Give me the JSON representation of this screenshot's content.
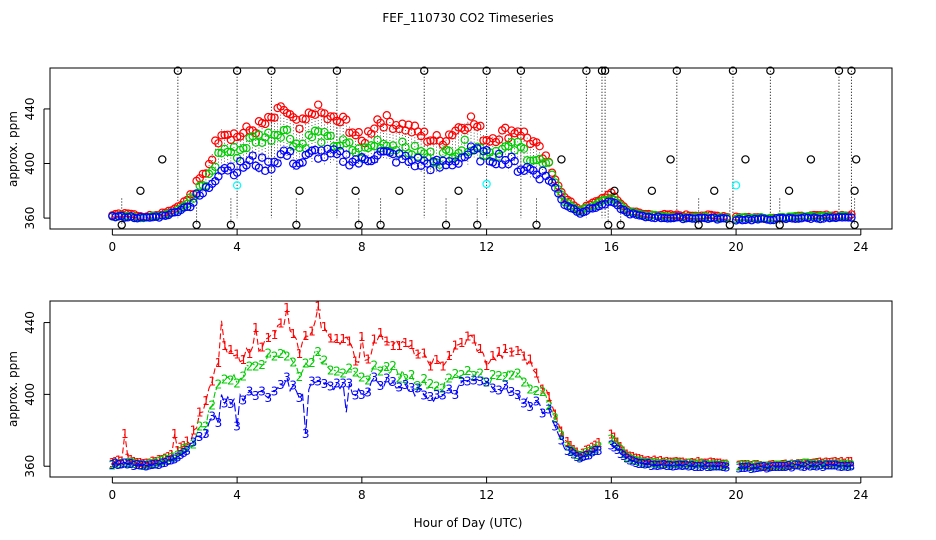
{
  "title": "FEF_110730  CO2 Timeseries",
  "xlabel_bottom": "Hour of Day (UTC)",
  "colors": {
    "series_1": "#ff0000",
    "series_2": "#00cc00",
    "series_3": "#0000ff",
    "outlier": "#000000",
    "alt": "#00ffff",
    "axis": "#000000"
  },
  "chart_data": [
    {
      "type": "scatter",
      "panel": "top",
      "ylabel": "approx. ppm",
      "xlim": [
        -2,
        25
      ],
      "ylim": [
        352,
        470
      ],
      "xticks": [
        0,
        4,
        8,
        12,
        16,
        20,
        24
      ],
      "yticks": [
        360,
        400,
        440
      ],
      "anchors": {
        "hours": [
          0,
          0.5,
          1,
          1.5,
          2,
          2.5,
          3,
          3.5,
          4,
          4.5,
          5,
          5.5,
          6,
          6.5,
          7,
          7.5,
          8,
          8.5,
          9,
          9.5,
          10,
          10.5,
          11,
          11.5,
          12,
          12.5,
          13,
          13.5,
          14,
          14.5,
          15,
          15.5,
          16,
          16.5,
          17,
          18,
          19,
          20,
          21,
          22,
          23,
          23.8
        ],
        "series_1": [
          362,
          364,
          361,
          363,
          367,
          375,
          395,
          425,
          420,
          425,
          430,
          440,
          425,
          440,
          432,
          430,
          415,
          432,
          430,
          426,
          420,
          416,
          425,
          432,
          418,
          422,
          425,
          415,
          398,
          375,
          366,
          372,
          378,
          366,
          363,
          362,
          362,
          361,
          360,
          361,
          362,
          362
        ],
        "series_2": [
          361,
          362,
          360,
          362,
          365,
          372,
          385,
          410,
          408,
          418,
          420,
          425,
          412,
          422,
          416,
          413,
          407,
          416,
          413,
          410,
          406,
          404,
          410,
          414,
          408,
          410,
          412,
          404,
          396,
          372,
          365,
          370,
          375,
          365,
          362,
          361,
          361,
          360,
          360,
          361,
          361,
          361
        ],
        "series_3": [
          361,
          361,
          360,
          361,
          364,
          370,
          380,
          398,
          396,
          402,
          398,
          408,
          400,
          408,
          406,
          404,
          401,
          408,
          405,
          402,
          400,
          398,
          402,
          408,
          405,
          404,
          398,
          395,
          390,
          370,
          364,
          368,
          372,
          364,
          361,
          360,
          360,
          359,
          359,
          360,
          360,
          360
        ]
      },
      "outliers_high": [
        2.1,
        4.0,
        5.1,
        7.2,
        10.0,
        12.0,
        13.1,
        15.2,
        15.7,
        15.8,
        18.1,
        19.9,
        21.1,
        23.3,
        23.7
      ],
      "outliers_low": [
        0.3,
        2.7,
        3.8,
        5.9,
        7.9,
        8.6,
        10.7,
        11.7,
        13.6,
        15.9,
        16.3,
        18.8,
        19.8,
        21.4,
        23.8
      ],
      "outliers_mid": [
        [
          0.9,
          380
        ],
        [
          1.6,
          403
        ],
        [
          6.0,
          380
        ],
        [
          7.8,
          380
        ],
        [
          9.2,
          380
        ],
        [
          11.1,
          380
        ],
        [
          14.4,
          403
        ],
        [
          16.1,
          380
        ],
        [
          17.3,
          380
        ],
        [
          17.9,
          403
        ],
        [
          19.3,
          380
        ],
        [
          20.3,
          403
        ],
        [
          21.7,
          380
        ],
        [
          22.4,
          403
        ],
        [
          23.8,
          380
        ],
        [
          23.85,
          403
        ]
      ],
      "cyan_points": [
        [
          4.0,
          384
        ],
        [
          12.0,
          385
        ],
        [
          20.0,
          384
        ]
      ]
    },
    {
      "type": "line",
      "panel": "bottom",
      "ylabel": "approx. ppm",
      "xlabel": "Hour of Day (UTC)",
      "xlim": [
        -2,
        25
      ],
      "ylim": [
        354,
        452
      ],
      "xticks": [
        0,
        4,
        8,
        12,
        16,
        20,
        24
      ],
      "yticks": [
        360,
        400,
        440
      ],
      "series_names": [
        "1",
        "2",
        "3"
      ],
      "gap_hours": [
        15.8,
        19.9
      ],
      "spikes": {
        "series_1": [
          [
            0.4,
            378
          ],
          [
            2.0,
            378
          ],
          [
            3.5,
            441
          ],
          [
            4.6,
            437
          ],
          [
            5.6,
            448
          ],
          [
            6.6,
            449
          ],
          [
            8.0,
            432
          ]
        ],
        "series_3": [
          [
            3.4,
            384
          ],
          [
            4.0,
            382
          ],
          [
            6.2,
            378
          ],
          [
            7.5,
            390
          ]
        ]
      }
    }
  ]
}
